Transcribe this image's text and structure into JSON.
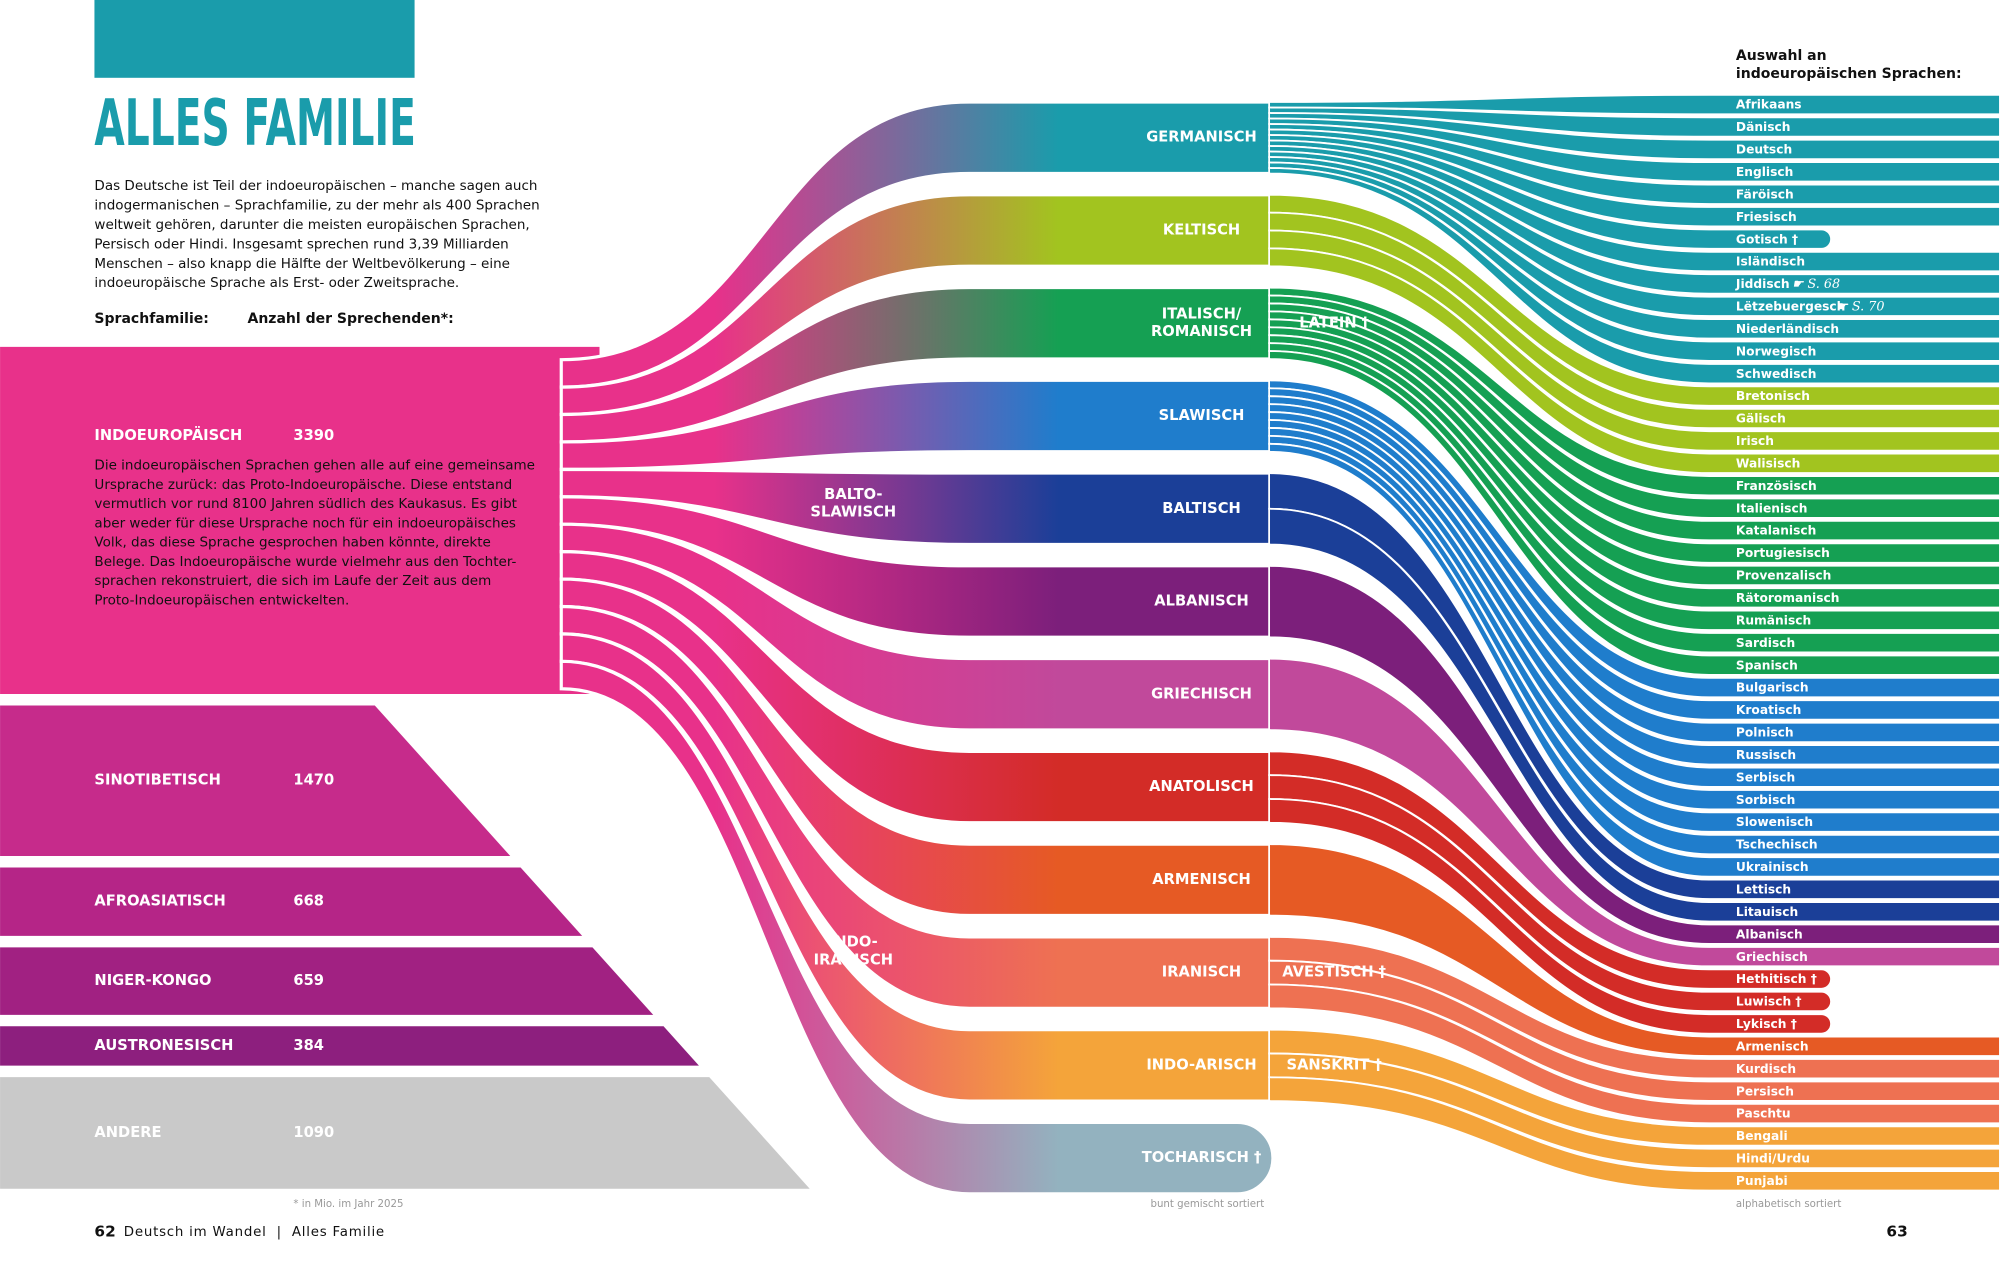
{
  "header": {
    "title": "ALLES FAMILIE",
    "intro": [
      "Das Deutsche ist Teil der indoeuropäischen – manche sagen auch",
      "indogermanischen – Sprachfamilie, zu der mehr als 400 Sprachen",
      "weltweit gehören, darunter die meisten europäischen Sprachen,",
      "Persisch oder Hindi. Insgesamt sprechen rund 3,39 Milliarden",
      "Menschen – also knapp die Hälfte der Weltbevölkerung – eine",
      "indoeuropäische Sprache als Erst- oder Zweitsprache."
    ]
  },
  "columns": {
    "family": "Sprachfamilie:",
    "speakers": "Anzahl der Sprechenden*:"
  },
  "families": [
    {
      "name": "INDOEUROPÄISCH",
      "speakers": 3390,
      "color": "#e8318a",
      "text": [
        "Die indoeuropäischen Sprachen gehen alle auf eine gemeinsame",
        "Ursprache zurück: das Proto-Indoeuropäische. Diese entstand",
        "vermutlich vor rund 8100 Jahren südlich des Kaukasus. Es gibt",
        "aber weder für diese Ursprache noch für ein indoeuropäisches",
        "Volk, das diese Sprache gesprochen haben könnte, direkte",
        "Belege. Das Indoeuropäische wurde vielmehr aus den Tochter-",
        "sprachen rekonstruiert, die sich im Laufe der Zeit aus dem",
        "Proto-Indoeuropäischen entwickelten."
      ]
    },
    {
      "name": "SINOTIBETISCH",
      "speakers": 1470,
      "color": "#c62b8b"
    },
    {
      "name": "AFROASIATISCH",
      "speakers": 668,
      "color": "#b52587"
    },
    {
      "name": "NIGER-KONGO",
      "speakers": 659,
      "color": "#a12182"
    },
    {
      "name": "AUSTRONESISCH",
      "speakers": 384,
      "color": "#8d1f7e"
    },
    {
      "name": "ANDERE",
      "speakers": 1090,
      "color": "#c9c9c9"
    }
  ],
  "footnote": "* in Mio. im Jahr 2025",
  "groups": [
    {
      "name": [
        "BALTO-",
        "SLAWISCH"
      ]
    },
    {
      "name": [
        "INDO-",
        "IRANISCH"
      ]
    }
  ],
  "branches": [
    {
      "name": "GERMANISCH",
      "color": "#1a9cab",
      "languages": [
        {
          "name": "Afrikaans"
        },
        {
          "name": "Dänisch"
        },
        {
          "name": "Deutsch"
        },
        {
          "name": "Englisch"
        },
        {
          "name": "Färöisch"
        },
        {
          "name": "Friesisch"
        },
        {
          "name": "Gotisch †"
        },
        {
          "name": "Isländisch"
        },
        {
          "name": "Jiddisch",
          "ref": "☛ S. 68"
        },
        {
          "name": "Lëtzebuergesch",
          "ref": "☛ S. 70"
        },
        {
          "name": "Niederländisch"
        },
        {
          "name": "Norwegisch"
        },
        {
          "name": "Schwedisch"
        }
      ]
    },
    {
      "name": "KELTISCH",
      "color": "#a2c41f",
      "languages": [
        {
          "name": "Bretonisch"
        },
        {
          "name": "Gälisch"
        },
        {
          "name": "Irisch"
        },
        {
          "name": "Walisisch"
        }
      ]
    },
    {
      "name": [
        "ITALISCH/",
        "ROMANISCH"
      ],
      "sub": "LATEIN †",
      "color": "#15a053",
      "languages": [
        {
          "name": "Französisch"
        },
        {
          "name": "Italienisch"
        },
        {
          "name": "Katalanisch"
        },
        {
          "name": "Portugiesisch"
        },
        {
          "name": "Provenzalisch"
        },
        {
          "name": "Rätoromanisch"
        },
        {
          "name": "Rumänisch"
        },
        {
          "name": "Sardisch"
        },
        {
          "name": "Spanisch"
        }
      ]
    },
    {
      "name": "SLAWISCH",
      "color": "#1f7dcc",
      "languages": [
        {
          "name": "Bulgarisch"
        },
        {
          "name": "Kroatisch"
        },
        {
          "name": "Polnisch"
        },
        {
          "name": "Russisch"
        },
        {
          "name": "Serbisch"
        },
        {
          "name": "Sorbisch"
        },
        {
          "name": "Slowenisch"
        },
        {
          "name": "Tschechisch"
        },
        {
          "name": "Ukrainisch"
        }
      ]
    },
    {
      "name": "BALTISCH",
      "color": "#1b3f98",
      "languages": [
        {
          "name": "Lettisch"
        },
        {
          "name": "Litauisch"
        }
      ]
    },
    {
      "name": "ALBANISCH",
      "color": "#7c1f7b",
      "languages": [
        {
          "name": "Albanisch"
        }
      ]
    },
    {
      "name": "GRIECHISCH",
      "color": "#c1499b",
      "languages": [
        {
          "name": "Griechisch"
        }
      ]
    },
    {
      "name": "ANATOLISCH",
      "color": "#d32c27",
      "languages": [
        {
          "name": "Hethitisch †"
        },
        {
          "name": "Luwisch †"
        },
        {
          "name": "Lykisch †"
        }
      ]
    },
    {
      "name": "ARMENISCH",
      "color": "#e65a24",
      "languages": [
        {
          "name": "Armenisch"
        }
      ]
    },
    {
      "name": "IRANISCH",
      "sub": "AVESTISCH †",
      "color": "#ee7152",
      "languages": [
        {
          "name": "Kurdisch"
        },
        {
          "name": "Persisch"
        },
        {
          "name": "Paschtu"
        }
      ]
    },
    {
      "name": "INDO-ARISCH",
      "sub": "SANSKRIT †",
      "color": "#f4a43a",
      "languages": [
        {
          "name": "Bengali"
        },
        {
          "name": "Hindi/Urdu"
        },
        {
          "name": "Punjabi"
        }
      ]
    },
    {
      "name": "TOCHARISCH †",
      "color": "#93b2bf",
      "languages": []
    }
  ],
  "branch_note": "bunt gemischt sortiert",
  "languages_heading": [
    "Auswahl an",
    "indoeuropäischen Sprachen:"
  ],
  "languages_note": "alphabetisch sortiert",
  "footer": {
    "page_left": "62",
    "running_title": "Deutsch im Wandel  |  Alles Familie",
    "page_right": "63"
  }
}
